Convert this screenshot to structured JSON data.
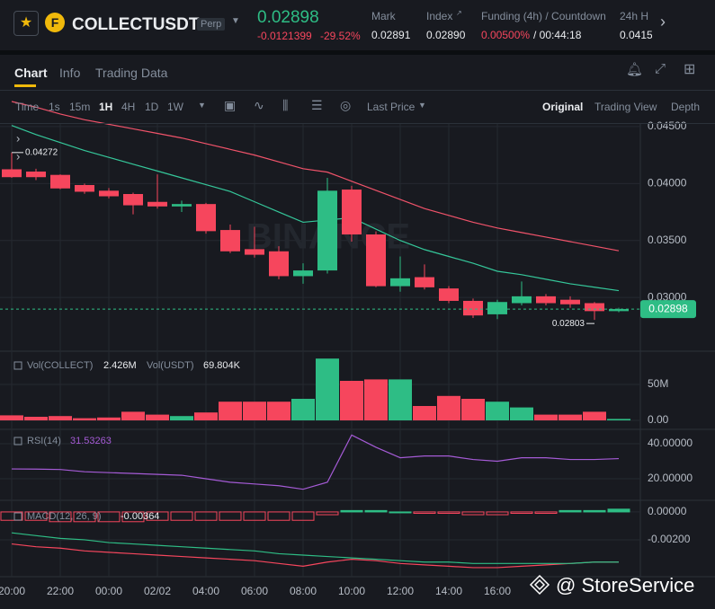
{
  "header": {
    "symbol": "COLLECTUSDT",
    "contract": "Perp",
    "price": "0.02898",
    "change": "-0.0121399",
    "change_pct": "-29.52%",
    "stats": [
      {
        "label": "Mark",
        "value": "0.02891"
      },
      {
        "label": "Index",
        "value": "0.02890"
      },
      {
        "label": "Funding (4h) / Countdown",
        "value": "0.00500%",
        "value2": "/ 00:44:18"
      },
      {
        "label": "24h H",
        "value": "0.0415"
      }
    ]
  },
  "tabs": [
    "Chart",
    "Info",
    "Trading Data"
  ],
  "toolbar": {
    "time_label": "Time",
    "intervals": [
      "1s",
      "15m",
      "1H",
      "4H",
      "1D",
      "1W"
    ],
    "price_type": "Last Price",
    "views": [
      "Original",
      "Trading View",
      "Depth"
    ]
  },
  "chart": {
    "type": "candlestick",
    "watermark": "BINANCE",
    "overlay_text": "@ StoreService",
    "x": [
      "20:00",
      null,
      "22:00",
      null,
      "00:00",
      null,
      "02/02",
      null,
      "04:00",
      null,
      "06:00",
      null,
      "08:00",
      null,
      "10:00",
      null,
      "12:00",
      null,
      "14:00",
      null,
      "16:00",
      null,
      null,
      null,
      null,
      null
    ],
    "candles": {
      "open": [
        0.04125,
        0.04105,
        0.04076,
        0.03987,
        0.03937,
        0.03908,
        0.03839,
        0.03799,
        0.0382,
        0.03592,
        0.03424,
        0.03405,
        0.03187,
        0.03237,
        0.03947,
        0.03553,
        0.03099,
        0.03178,
        0.03079,
        0.0297,
        0.02852,
        0.0295,
        0.0301,
        0.0298,
        0.0295,
        0.0288
      ],
      "high": [
        0.04272,
        0.0413,
        0.0408,
        0.04,
        0.0396,
        0.0392,
        0.0408,
        0.0385,
        0.0383,
        0.0364,
        0.0362,
        0.0345,
        0.033,
        0.0405,
        0.0398,
        0.0358,
        0.0336,
        0.0329,
        0.031,
        0.0299,
        0.0298,
        0.0314,
        0.0303,
        0.0301,
        0.0296,
        0.0291
      ],
      "low": [
        0.0405,
        0.0403,
        0.0395,
        0.0391,
        0.0387,
        0.0373,
        0.0378,
        0.0375,
        0.0356,
        0.0339,
        0.0335,
        0.0316,
        0.0312,
        0.0321,
        0.0349,
        0.0309,
        0.0305,
        0.0307,
        0.0295,
        0.0282,
        0.0281,
        0.0293,
        0.0293,
        0.0291,
        0.02803,
        0.0287
      ],
      "close": [
        0.04056,
        0.04056,
        0.03957,
        0.03928,
        0.03888,
        0.03809,
        0.03799,
        0.0382,
        0.03582,
        0.03405,
        0.03375,
        0.03187,
        0.03237,
        0.03937,
        0.03553,
        0.03099,
        0.03168,
        0.03089,
        0.0297,
        0.02842,
        0.0296,
        0.0301,
        0.0295,
        0.0294,
        0.0288,
        0.02898
      ]
    },
    "up_color": "#2ebd85",
    "down_color": "#f6465d",
    "ma": [
      {
        "color": "#f0536a",
        "values": [
          0.0472,
          0.0467,
          0.0461,
          0.0456,
          0.0452,
          0.0448,
          0.0444,
          0.044,
          0.0435,
          0.043,
          0.0425,
          0.0419,
          0.0413,
          0.041,
          0.0402,
          0.0394,
          0.0386,
          0.0378,
          0.0372,
          0.0366,
          0.0361,
          0.0357,
          0.0353,
          0.0349,
          0.0345,
          0.0341
        ]
      },
      {
        "color": "#35c79a",
        "values": [
          0.0451,
          0.0443,
          0.0436,
          0.0429,
          0.0423,
          0.0417,
          0.0411,
          0.0405,
          0.0399,
          0.0393,
          0.0384,
          0.0375,
          0.0366,
          0.0368,
          0.037,
          0.036,
          0.035,
          0.0342,
          0.0336,
          0.033,
          0.0323,
          0.032,
          0.0316,
          0.0312,
          0.0309,
          0.0306
        ]
      }
    ],
    "ylim": [
      0.02536,
      0.04523
    ],
    "yticks": [
      {
        "value": 0.045,
        "label": "0.04500"
      },
      {
        "value": 0.04,
        "label": "0.04000"
      },
      {
        "value": 0.035,
        "label": "0.03500"
      },
      {
        "value": 0.03,
        "label": "0.03000"
      }
    ],
    "last_price": 0.02898,
    "high_mark": 0.04272,
    "low_mark": 0.02803,
    "volume": {
      "label": "Vol(COLLECT)",
      "value": "2.426M",
      "label2": "Vol(USDT)",
      "value2": "69.804K",
      "values": [
        7,
        5,
        6,
        3,
        4,
        12,
        8,
        6,
        11,
        26,
        26,
        26,
        30,
        86,
        55,
        57,
        57,
        20,
        34,
        30,
        26,
        18,
        8,
        8,
        12,
        2
      ],
      "ylim": [
        -11.25,
        95
      ],
      "yticks": [
        {
          "value": 50,
          "label": "50M"
        },
        {
          "value": 0,
          "label": "0.00"
        }
      ]
    },
    "rsi": {
      "label": "RSI(14)",
      "value": "31.53263",
      "color": "#a55bd6",
      "values": [
        25.6,
        25.5,
        25.3,
        24,
        23.5,
        23,
        22.5,
        22,
        20,
        18,
        17,
        16,
        14,
        18,
        45,
        38,
        32,
        33,
        33,
        31,
        30,
        32,
        32,
        31,
        31,
        31.5
      ],
      "ylim": [
        8.7,
        47.2
      ],
      "yticks": [
        {
          "value": 40,
          "label": "40.00000"
        },
        {
          "value": 20,
          "label": "20.00000"
        }
      ]
    },
    "macd": {
      "label": "MACD(12, 26, 9)",
      "value": "-0.00364",
      "hist": [
        -0.0006,
        -0.0006,
        -0.0007,
        -0.0007,
        -0.0007,
        -0.0007,
        -0.0006,
        -0.0006,
        -0.0006,
        -0.0006,
        -0.0006,
        -0.0006,
        -0.0006,
        -0.0002,
        0.0001,
        0.0001,
        0.0,
        -0.0001,
        -0.0001,
        -0.0002,
        -0.0002,
        -0.0001,
        -0.0001,
        0.0001,
        0.0001,
        0.0002
      ],
      "lines": [
        {
          "color": "#f6465d",
          "values": [
            -0.0023,
            -0.0025,
            -0.0026,
            -0.0028,
            -0.0029,
            -0.003,
            -0.0031,
            -0.0032,
            -0.0033,
            -0.0034,
            -0.0035,
            -0.0037,
            -0.0039,
            -0.0036,
            -0.0034,
            -0.0035,
            -0.0037,
            -0.0038,
            -0.0039,
            -0.004,
            -0.004,
            -0.0039,
            -0.0038,
            -0.0037,
            -0.0036,
            -0.0036
          ]
        },
        {
          "color": "#2ebd85",
          "values": [
            -0.0015,
            -0.0017,
            -0.0019,
            -0.002,
            -0.0022,
            -0.0023,
            -0.0024,
            -0.0025,
            -0.0026,
            -0.0027,
            -0.0028,
            -0.003,
            -0.0031,
            -0.0032,
            -0.0033,
            -0.0034,
            -0.0035,
            -0.0036,
            -0.0036,
            -0.0037,
            -0.0037,
            -0.0037,
            -0.0037,
            -0.0037,
            -0.0036,
            -0.0036
          ]
        }
      ],
      "ylim": [
        -0.00452,
        0.00077
      ],
      "yticks": [
        {
          "value": 0,
          "label": "0.00000"
        },
        {
          "value": -0.002,
          "label": "-0.00200"
        }
      ]
    }
  }
}
